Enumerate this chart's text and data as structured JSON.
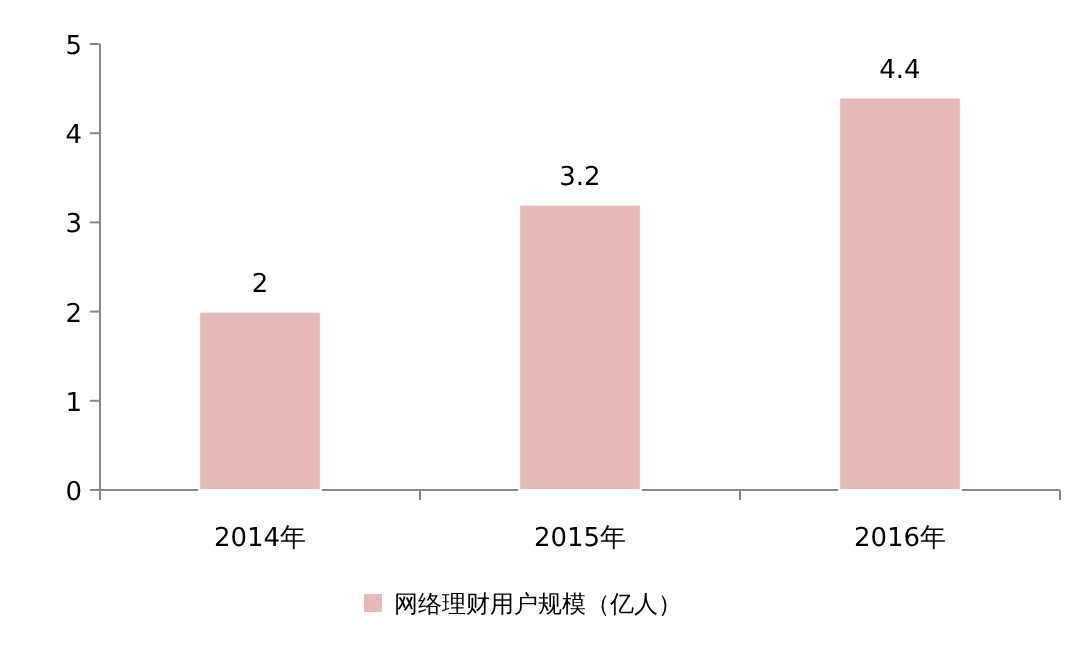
{
  "chart_data": {
    "type": "bar",
    "categories": [
      "2014年",
      "2015年",
      "2016年"
    ],
    "series": [
      {
        "name": "网络理财用户规模（亿人）",
        "color": "#e6b9b8",
        "values": [
          2,
          3.2,
          4.4
        ]
      }
    ],
    "ylim": [
      0,
      5
    ],
    "yticks": [
      0,
      1,
      2,
      3,
      4,
      5
    ],
    "data_labels": true,
    "legend": "bottom"
  }
}
